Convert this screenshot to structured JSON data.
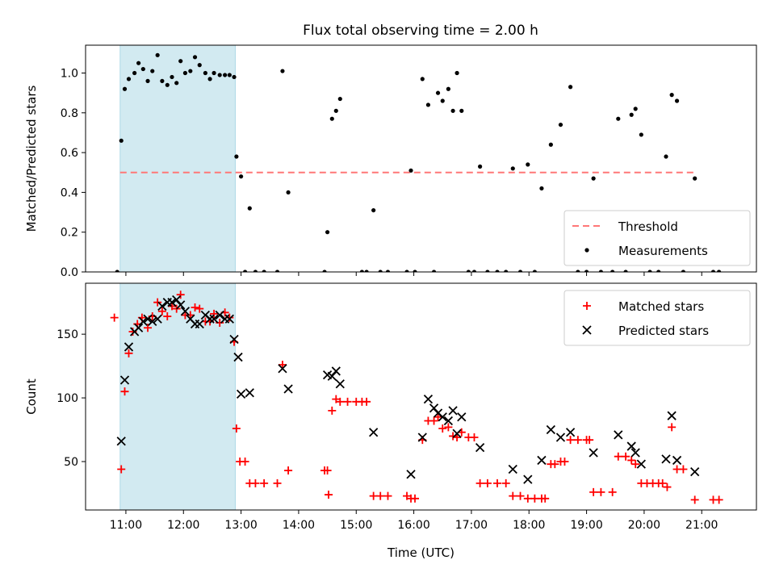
{
  "title": "Flux total observing time = 2.00 h",
  "colors": {
    "highlight": "#add8e6",
    "threshold": "#ff7777",
    "matched": "#ff0000",
    "predicted": "#000000",
    "measure": "#000000"
  },
  "chart_data": [
    {
      "type": "scatter",
      "ylabel": "Matched/Predicted stars",
      "xlim": [
        10.3,
        21.95
      ],
      "ylim": [
        0,
        1.14
      ],
      "yticks": [
        0.0,
        0.2,
        0.4,
        0.6,
        0.8,
        1.0
      ],
      "ytick_labels": [
        "0.0",
        "0.2",
        "0.4",
        "0.6",
        "0.8",
        "1.0"
      ],
      "highlight": [
        10.9,
        12.9
      ],
      "threshold": {
        "value": 0.5,
        "x": [
          10.9,
          20.9
        ],
        "label": "Threshold"
      },
      "legend": {
        "placement": "lower-right",
        "entries": [
          "Threshold",
          "Measurements"
        ]
      },
      "series": [
        {
          "name": "Measurements",
          "points": [
            [
              10.85,
              0.0
            ],
            [
              10.92,
              0.66
            ],
            [
              10.98,
              0.92
            ],
            [
              11.05,
              0.97
            ],
            [
              11.15,
              1.0
            ],
            [
              11.22,
              1.05
            ],
            [
              11.3,
              1.02
            ],
            [
              11.38,
              0.96
            ],
            [
              11.46,
              1.01
            ],
            [
              11.55,
              1.09
            ],
            [
              11.63,
              0.96
            ],
            [
              11.72,
              0.94
            ],
            [
              11.8,
              0.98
            ],
            [
              11.88,
              0.95
            ],
            [
              11.95,
              1.06
            ],
            [
              12.03,
              1.0
            ],
            [
              12.12,
              1.01
            ],
            [
              12.2,
              1.08
            ],
            [
              12.28,
              1.04
            ],
            [
              12.38,
              1.0
            ],
            [
              12.46,
              0.97
            ],
            [
              12.53,
              1.0
            ],
            [
              12.63,
              0.99
            ],
            [
              12.72,
              0.99
            ],
            [
              12.8,
              0.99
            ],
            [
              12.88,
              0.98
            ],
            [
              12.92,
              0.58
            ],
            [
              13.0,
              0.48
            ],
            [
              13.07,
              0.0
            ],
            [
              13.15,
              0.32
            ],
            [
              13.25,
              0.0
            ],
            [
              13.4,
              0.0
            ],
            [
              13.63,
              0.0
            ],
            [
              13.72,
              1.01
            ],
            [
              13.82,
              0.4
            ],
            [
              14.45,
              0.0
            ],
            [
              14.5,
              0.2
            ],
            [
              14.58,
              0.77
            ],
            [
              14.65,
              0.81
            ],
            [
              14.72,
              0.87
            ],
            [
              15.1,
              0.0
            ],
            [
              15.18,
              0.0
            ],
            [
              15.3,
              0.31
            ],
            [
              15.42,
              0.0
            ],
            [
              15.55,
              0.0
            ],
            [
              15.88,
              0.0
            ],
            [
              15.95,
              0.51
            ],
            [
              16.02,
              0.0
            ],
            [
              16.15,
              0.97
            ],
            [
              16.25,
              0.84
            ],
            [
              16.35,
              0.0
            ],
            [
              16.42,
              0.9
            ],
            [
              16.5,
              0.86
            ],
            [
              16.6,
              0.92
            ],
            [
              16.68,
              0.81
            ],
            [
              16.75,
              1.0
            ],
            [
              16.83,
              0.81
            ],
            [
              16.95,
              0.0
            ],
            [
              17.05,
              0.0
            ],
            [
              17.15,
              0.53
            ],
            [
              17.28,
              0.0
            ],
            [
              17.45,
              0.0
            ],
            [
              17.6,
              0.0
            ],
            [
              17.72,
              0.52
            ],
            [
              17.85,
              0.0
            ],
            [
              17.98,
              0.54
            ],
            [
              18.1,
              0.0
            ],
            [
              18.22,
              0.42
            ],
            [
              18.38,
              0.64
            ],
            [
              18.55,
              0.74
            ],
            [
              18.72,
              0.93
            ],
            [
              18.85,
              0.0
            ],
            [
              19.0,
              0.0
            ],
            [
              19.12,
              0.47
            ],
            [
              19.25,
              0.0
            ],
            [
              19.45,
              0.0
            ],
            [
              19.55,
              0.77
            ],
            [
              19.68,
              0.0
            ],
            [
              19.78,
              0.79
            ],
            [
              19.85,
              0.82
            ],
            [
              19.95,
              0.69
            ],
            [
              20.1,
              0.0
            ],
            [
              20.25,
              0.0
            ],
            [
              20.38,
              0.58
            ],
            [
              20.48,
              0.89
            ],
            [
              20.57,
              0.86
            ],
            [
              20.68,
              0.0
            ],
            [
              20.88,
              0.47
            ],
            [
              21.2,
              0.0
            ],
            [
              21.3,
              0.0
            ]
          ]
        }
      ]
    },
    {
      "type": "scatter",
      "ylabel": "Count",
      "xlabel": "Time (UTC)",
      "xlim": [
        10.3,
        21.95
      ],
      "ylim": [
        12,
        190
      ],
      "yticks": [
        50,
        100,
        150
      ],
      "ytick_labels": [
        "50",
        "100",
        "150"
      ],
      "xticks": [
        11,
        12,
        13,
        14,
        15,
        16,
        17,
        18,
        19,
        20,
        21
      ],
      "xtick_labels": [
        "11:00",
        "12:00",
        "13:00",
        "14:00",
        "15:00",
        "16:00",
        "17:00",
        "18:00",
        "19:00",
        "20:00",
        "21:00"
      ],
      "highlight": [
        10.9,
        12.9
      ],
      "legend": {
        "placement": "top-right",
        "entries": [
          "Matched stars",
          "Predicted stars"
        ]
      },
      "series": [
        {
          "name": "Matched stars",
          "points": [
            [
              10.8,
              163
            ],
            [
              10.92,
              44
            ],
            [
              10.98,
              105
            ],
            [
              11.05,
              135
            ],
            [
              11.12,
              152
            ],
            [
              11.2,
              158
            ],
            [
              11.28,
              163
            ],
            [
              11.38,
              155
            ],
            [
              11.46,
              164
            ],
            [
              11.55,
              175
            ],
            [
              11.63,
              168
            ],
            [
              11.72,
              164
            ],
            [
              11.8,
              172
            ],
            [
              11.88,
              170
            ],
            [
              11.95,
              181
            ],
            [
              12.03,
              165
            ],
            [
              12.12,
              165
            ],
            [
              12.2,
              171
            ],
            [
              12.28,
              170
            ],
            [
              12.38,
              160
            ],
            [
              12.46,
              160
            ],
            [
              12.53,
              166
            ],
            [
              12.63,
              159
            ],
            [
              12.72,
              167
            ],
            [
              12.8,
              163
            ],
            [
              12.88,
              144
            ],
            [
              12.92,
              76
            ],
            [
              12.98,
              50
            ],
            [
              13.07,
              50
            ],
            [
              13.15,
              33
            ],
            [
              13.25,
              33
            ],
            [
              13.4,
              33
            ],
            [
              13.63,
              33
            ],
            [
              13.72,
              126
            ],
            [
              13.82,
              43
            ],
            [
              14.45,
              43
            ],
            [
              14.5,
              43
            ],
            [
              14.52,
              24
            ],
            [
              14.58,
              90
            ],
            [
              14.65,
              99
            ],
            [
              14.72,
              97
            ],
            [
              14.85,
              97
            ],
            [
              15.0,
              97
            ],
            [
              15.1,
              97
            ],
            [
              15.18,
              97
            ],
            [
              15.3,
              23
            ],
            [
              15.42,
              23
            ],
            [
              15.55,
              23
            ],
            [
              15.88,
              23
            ],
            [
              15.95,
              21
            ],
            [
              16.02,
              21
            ],
            [
              16.15,
              67
            ],
            [
              16.25,
              82
            ],
            [
              16.35,
              82
            ],
            [
              16.42,
              85
            ],
            [
              16.5,
              76
            ],
            [
              16.6,
              77
            ],
            [
              16.68,
              70
            ],
            [
              16.75,
              69
            ],
            [
              16.83,
              73
            ],
            [
              16.95,
              69
            ],
            [
              17.05,
              69
            ],
            [
              17.15,
              33
            ],
            [
              17.28,
              33
            ],
            [
              17.45,
              33
            ],
            [
              17.6,
              33
            ],
            [
              17.72,
              23
            ],
            [
              17.85,
              23
            ],
            [
              17.98,
              21
            ],
            [
              18.1,
              21
            ],
            [
              18.22,
              21
            ],
            [
              18.28,
              21
            ],
            [
              18.38,
              48
            ],
            [
              18.45,
              48
            ],
            [
              18.55,
              50
            ],
            [
              18.62,
              50
            ],
            [
              18.72,
              67
            ],
            [
              18.85,
              67
            ],
            [
              19.0,
              67
            ],
            [
              19.05,
              67
            ],
            [
              19.12,
              26
            ],
            [
              19.25,
              26
            ],
            [
              19.45,
              26
            ],
            [
              19.55,
              54
            ],
            [
              19.68,
              54
            ],
            [
              19.78,
              51
            ],
            [
              19.85,
              48
            ],
            [
              19.95,
              33
            ],
            [
              20.05,
              33
            ],
            [
              20.15,
              33
            ],
            [
              20.25,
              33
            ],
            [
              20.32,
              33
            ],
            [
              20.4,
              30
            ],
            [
              20.48,
              77
            ],
            [
              20.57,
              44
            ],
            [
              20.68,
              44
            ],
            [
              20.88,
              20
            ],
            [
              21.2,
              20
            ],
            [
              21.3,
              20
            ]
          ]
        },
        {
          "name": "Predicted stars",
          "points": [
            [
              10.92,
              66
            ],
            [
              10.98,
              114
            ],
            [
              11.05,
              140
            ],
            [
              11.15,
              152
            ],
            [
              11.22,
              155
            ],
            [
              11.3,
              160
            ],
            [
              11.38,
              162
            ],
            [
              11.46,
              160
            ],
            [
              11.55,
              162
            ],
            [
              11.63,
              172
            ],
            [
              11.72,
              175
            ],
            [
              11.8,
              175
            ],
            [
              11.88,
              177
            ],
            [
              11.95,
              173
            ],
            [
              12.03,
              168
            ],
            [
              12.12,
              162
            ],
            [
              12.2,
              158
            ],
            [
              12.28,
              158
            ],
            [
              12.38,
              165
            ],
            [
              12.46,
              162
            ],
            [
              12.53,
              162
            ],
            [
              12.63,
              165
            ],
            [
              12.72,
              162
            ],
            [
              12.8,
              162
            ],
            [
              12.88,
              146
            ],
            [
              12.95,
              132
            ],
            [
              13.0,
              103
            ],
            [
              13.15,
              104
            ],
            [
              13.72,
              123
            ],
            [
              13.82,
              107
            ],
            [
              14.5,
              118
            ],
            [
              14.58,
              117
            ],
            [
              14.65,
              121
            ],
            [
              14.72,
              111
            ],
            [
              15.3,
              73
            ],
            [
              15.95,
              40
            ],
            [
              16.15,
              69
            ],
            [
              16.25,
              99
            ],
            [
              16.35,
              92
            ],
            [
              16.42,
              88
            ],
            [
              16.5,
              85
            ],
            [
              16.6,
              82
            ],
            [
              16.68,
              90
            ],
            [
              16.75,
              72
            ],
            [
              16.83,
              85
            ],
            [
              17.15,
              61
            ],
            [
              17.72,
              44
            ],
            [
              17.98,
              36
            ],
            [
              18.22,
              51
            ],
            [
              18.38,
              75
            ],
            [
              18.55,
              69
            ],
            [
              18.72,
              73
            ],
            [
              19.12,
              57
            ],
            [
              19.55,
              71
            ],
            [
              19.78,
              62
            ],
            [
              19.85,
              57
            ],
            [
              19.95,
              48
            ],
            [
              20.38,
              52
            ],
            [
              20.48,
              86
            ],
            [
              20.57,
              51
            ],
            [
              20.88,
              42
            ]
          ]
        }
      ]
    }
  ]
}
